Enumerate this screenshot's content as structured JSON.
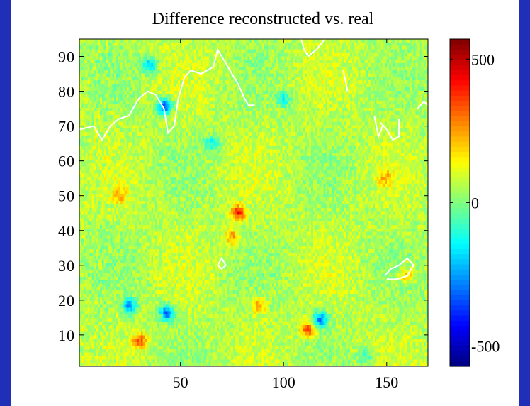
{
  "chart_data": {
    "type": "heatmap",
    "title": "Difference reconstructed vs. real",
    "xlabel": "",
    "ylabel": "",
    "xlim": [
      1,
      170
    ],
    "ylim": [
      1,
      95
    ],
    "x_ticks": [
      50,
      100,
      150
    ],
    "y_ticks": [
      10,
      20,
      30,
      40,
      50,
      60,
      70,
      80,
      90
    ],
    "x_tick_labels": [
      "50",
      "100",
      "150"
    ],
    "y_tick_labels": [
      "10",
      "20",
      "30",
      "40",
      "50",
      "60",
      "70",
      "80",
      "90"
    ],
    "colorbar": {
      "colormap": "jet",
      "range": [
        -570,
        570
      ],
      "ticks": [
        500,
        0,
        -500
      ],
      "tick_labels": [
        "500",
        "0",
        "-500"
      ]
    },
    "field_summary": "Values mostly near 0 (light green/cyan), scattered positive (yellow/orange) and negative (blue) anomalies",
    "anomalies": [
      {
        "x": 78,
        "y": 45,
        "value": 330
      },
      {
        "x": 43,
        "y": 16,
        "value": -380
      },
      {
        "x": 42,
        "y": 76,
        "value": -420
      },
      {
        "x": 118,
        "y": 14,
        "value": -340
      },
      {
        "x": 112,
        "y": 11,
        "value": 300
      },
      {
        "x": 25,
        "y": 18,
        "value": -300
      },
      {
        "x": 160,
        "y": 27,
        "value": 180
      },
      {
        "x": 35,
        "y": 88,
        "value": -260
      },
      {
        "x": 75,
        "y": 38,
        "value": 200
      },
      {
        "x": 20,
        "y": 50,
        "value": 170
      },
      {
        "x": 100,
        "y": 78,
        "value": -200
      },
      {
        "x": 65,
        "y": 65,
        "value": -180
      },
      {
        "x": 150,
        "y": 55,
        "value": 150
      },
      {
        "x": 30,
        "y": 8,
        "value": 250
      },
      {
        "x": 88,
        "y": 18,
        "value": 220
      },
      {
        "x": 140,
        "y": 3,
        "value": -150
      }
    ],
    "contours": [
      {
        "color": "#ffffff",
        "points": [
          [
            1,
            69
          ],
          [
            8,
            70
          ],
          [
            12,
            66
          ],
          [
            16,
            70
          ],
          [
            20,
            72
          ],
          [
            25,
            73
          ],
          [
            30,
            78
          ],
          [
            34,
            80
          ],
          [
            38,
            79
          ],
          [
            42,
            75
          ],
          [
            44,
            68
          ],
          [
            47,
            70
          ],
          [
            49,
            78
          ],
          [
            52,
            84
          ],
          [
            55,
            86
          ],
          [
            60,
            85
          ],
          [
            66,
            87
          ],
          [
            68,
            92
          ],
          [
            72,
            88
          ],
          [
            76,
            84
          ],
          [
            78,
            82
          ],
          [
            81,
            78
          ],
          [
            83,
            76
          ],
          [
            86,
            76
          ]
        ]
      },
      {
        "color": "#ffffff",
        "points": [
          [
            108,
            96
          ],
          [
            110,
            92
          ],
          [
            112,
            90
          ],
          [
            116,
            92
          ],
          [
            120,
            95
          ],
          [
            124,
            96
          ]
        ]
      },
      {
        "color": "#ffffff",
        "points": [
          [
            147,
            71
          ],
          [
            150,
            69
          ],
          [
            153,
            66
          ],
          [
            156,
            67
          ],
          [
            156,
            72
          ]
        ]
      },
      {
        "color": "#ffffff",
        "points": [
          [
            144,
            73
          ],
          [
            146,
            67
          ],
          [
            148,
            70
          ]
        ]
      },
      {
        "color": "#ffffff",
        "points": [
          [
            149,
            27
          ],
          [
            152,
            29
          ],
          [
            156,
            30
          ],
          [
            160,
            32
          ],
          [
            163,
            30
          ],
          [
            160,
            27
          ],
          [
            155,
            26
          ],
          [
            150,
            26
          ]
        ]
      },
      {
        "color": "#ffffff",
        "points": [
          [
            68,
            30
          ],
          [
            70,
            32
          ],
          [
            72,
            30
          ],
          [
            70,
            29
          ],
          [
            68,
            30
          ]
        ]
      },
      {
        "color": "#ffffff",
        "points": [
          [
            172,
            75
          ],
          [
            168,
            77
          ],
          [
            165,
            75
          ]
        ]
      },
      {
        "color": "#ffffff",
        "points": [
          [
            131,
            80
          ],
          [
            130,
            83
          ],
          [
            129,
            86
          ]
        ]
      }
    ]
  }
}
